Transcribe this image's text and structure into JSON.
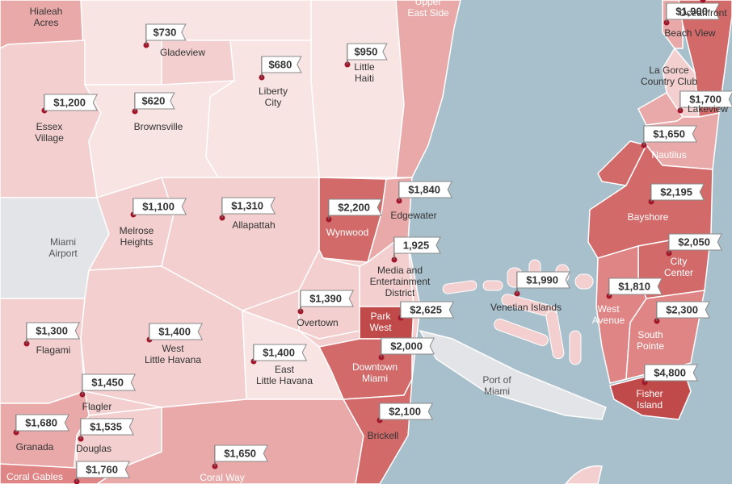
{
  "colors": {
    "water": "#a8bfcc",
    "shade1": "#f9e4e4",
    "shade2": "#f3cfcf",
    "shade3": "#eaa9a9",
    "shade4": "#e08585",
    "shade5": "#d26a6a",
    "shade6": "#c04a4a",
    "gray": "#e2e4e7",
    "dot": "#a3162a"
  },
  "neighborhoods": [
    {
      "name": "Hialeah\nAcres"
    },
    {
      "name": "Gladeview",
      "price": "$730"
    },
    {
      "name": "Little\nHaiti",
      "price": "$950"
    },
    {
      "name": "Upper\nEast Side"
    },
    {
      "name": "Liberty\nCity",
      "price": "$680"
    },
    {
      "name": "Essex\nVillage",
      "price": "$1,200"
    },
    {
      "name": "Brownsville",
      "price": "$620"
    },
    {
      "name": "Wynwood",
      "price": "$2,200"
    },
    {
      "name": "Edgewater",
      "price": "$1,840"
    },
    {
      "name": "Melrose\nHeights",
      "price": "$1,100"
    },
    {
      "name": "Allapattah",
      "price": "$1,310"
    },
    {
      "name": "Miami\nAirport"
    },
    {
      "name": "Media and\nEntertainment\nDistrict",
      "price": "1,925"
    },
    {
      "name": "Overtown",
      "price": "$1,390"
    },
    {
      "name": "Park\nWest",
      "price": "$2,625"
    },
    {
      "name": "Downtown\nMiami",
      "price": "$2,000"
    },
    {
      "name": "Flagami",
      "price": "$1,300"
    },
    {
      "name": "West\nLittle Havana",
      "price": "$1,400"
    },
    {
      "name": "East\nLittle Havana",
      "price": "$1,400"
    },
    {
      "name": "Flagler",
      "price": "$1,450"
    },
    {
      "name": "Granada",
      "price": "$1,680"
    },
    {
      "name": "Douglas",
      "price": "$1,535"
    },
    {
      "name": "Brickell",
      "price": "$2,100"
    },
    {
      "name": "Coral Gables",
      "price": "$1,760"
    },
    {
      "name": "Coral Way",
      "price": "$1,650"
    },
    {
      "name": "Venetian Islands",
      "price": "$1,990"
    },
    {
      "name": "Port of\nMiami"
    },
    {
      "name": "Beach View",
      "price": "$1,900"
    },
    {
      "name": "Oceanfront"
    },
    {
      "name": "La Gorce\nCountry Club"
    },
    {
      "name": "Lakeview",
      "price": "$1,700"
    },
    {
      "name": "Nautilus",
      "price": "$1,650"
    },
    {
      "name": "Bayshore",
      "price": "$2,195"
    },
    {
      "name": "City\nCenter",
      "price": "$2,050"
    },
    {
      "name": "West\nAvenue",
      "price": "$1,810"
    },
    {
      "name": "South\nPointe",
      "price": "$2,300"
    },
    {
      "name": "Fisher\nIsland",
      "price": "$4,800"
    }
  ]
}
